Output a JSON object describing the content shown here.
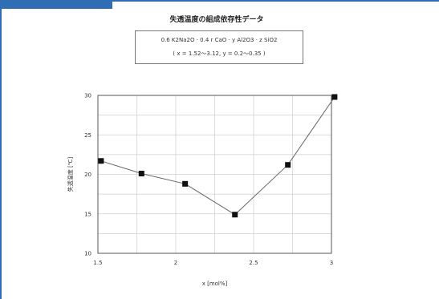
{
  "chart_data": {
    "type": "line",
    "title": "失透温度の組成依存性データ",
    "formula": {
      "line1": "0.6 K2Na2O · 0.4 r CaO · y Al2O3 · z SiO2",
      "line2": "( x = 1.52〜3.12,  y = 0.2〜0.35 )"
    },
    "xlabel": "x [mol%]",
    "ylabel": "失透温度 [℃]",
    "xlim": [
      1.5,
      3.0
    ],
    "ylim": [
      10,
      30
    ],
    "xticks": [
      "1.5",
      "2",
      "2.5",
      "3"
    ],
    "yticks": [
      "10",
      "15",
      "20",
      "25",
      "30"
    ],
    "grid": true,
    "series": [
      {
        "x": [
          1.52,
          1.78,
          2.06,
          2.38,
          2.72,
          3.02
        ],
        "y": [
          21.7,
          20.1,
          18.8,
          14.9,
          21.2,
          29.8
        ]
      }
    ]
  }
}
